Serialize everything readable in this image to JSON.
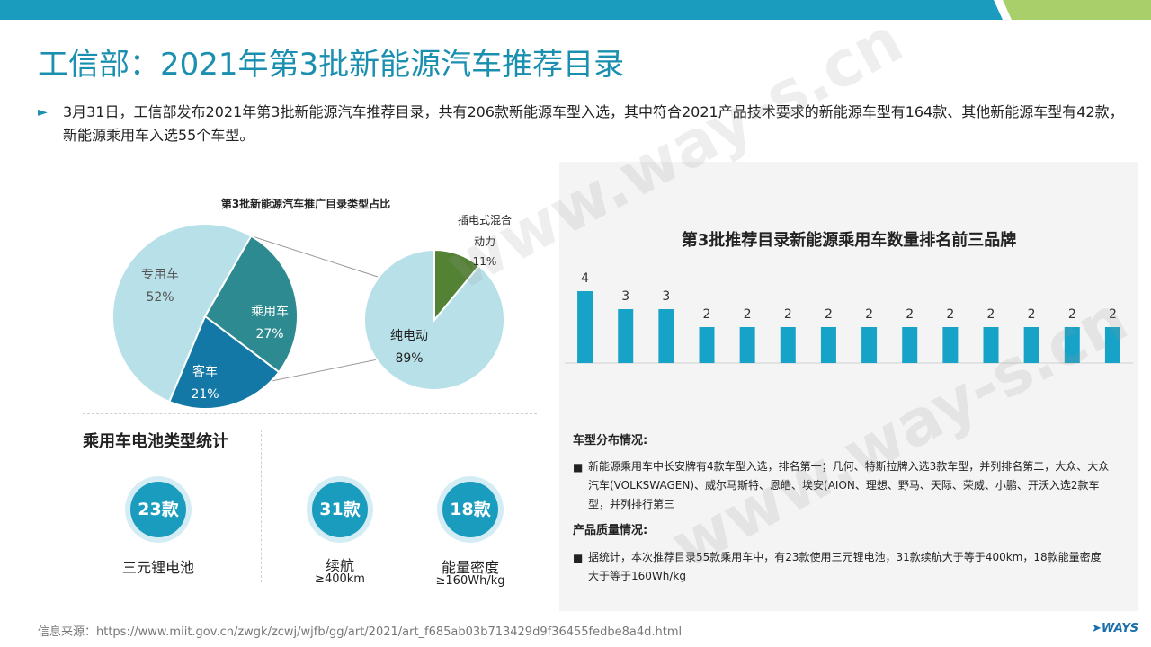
{
  "page": {
    "title": "工信部：2021年第3批新能源汽车推荐目录",
    "intro": "3月31日，工信部发布2021年第3批新能源汽车推荐目录，共有206款新能源车型入选，其中符合2021产品技术要求的新能源车型有164款、其他新能源车型有42款，新能源乘用车入选55个车型。",
    "footer": "信息来源：https://www.miit.gov.cn/zwgk/zcwj/wjfb/gg/art/2021/art_f685ab03b713429d9f36455fedbe8a4d.html",
    "logo": "WAYS",
    "watermark": "www.way-s.cn"
  },
  "colors": {
    "accent": "#1a8fb0",
    "bar": "#17a2c7",
    "pie_light": "#b8e0e8",
    "pie_teal": "#2e8a91",
    "pie_blue": "#1478a6",
    "pie_green": "#548235",
    "badge": "#1a9cbe"
  },
  "pie_section": {
    "title": "第3批新能源汽车推广目录类型占比"
  },
  "battery": {
    "title": "乘用车电池类型统计",
    "stats": [
      {
        "badge": "23款",
        "label": "三元锂电池",
        "sub": ""
      },
      {
        "badge": "31款",
        "label": "续航",
        "sub": "≥400km"
      },
      {
        "badge": "18款",
        "label": "能量密度",
        "sub": "≥160Wh/kg"
      }
    ]
  },
  "info": {
    "dist_heading": "车型分布情况:",
    "dist_text": "新能源乘用车中长安牌有4款车型入选，排名第一；几何、特斯拉牌入选3款车型，并列排名第二，大众、大众汽车(VOLKSWAGEN)、威尔马斯特、恩皓、埃安(AION、理想、野马、天际、荣威、小鹏、开沃入选2款车型，并列排行第三",
    "quality_heading": "产品质量情况:",
    "quality_text": "据统计，本次推荐目录55款乘用车中，有23款使用三元锂电池，31款续航大于等于400km，18款能量密度大于等于160Wh/kg"
  },
  "chart_data": [
    {
      "type": "pie",
      "title": "",
      "labels": [
        "专用车",
        "乘用车",
        "客车"
      ],
      "values": [
        52,
        27,
        21
      ],
      "value_labels": [
        "52%",
        "27%",
        "21%"
      ]
    },
    {
      "type": "pie",
      "title": "",
      "labels": [
        "纯电动",
        "插电式混合动力"
      ],
      "values": [
        89,
        11
      ],
      "value_labels": [
        "89%",
        "11%"
      ]
    },
    {
      "type": "bar",
      "title": "第3批推荐目录新能源乘用车数量排名前三品牌",
      "categories": [
        "",
        "",
        "",
        "",
        "",
        "",
        "",
        "",
        "",
        "",
        "",
        "",
        "",
        ""
      ],
      "values": [
        4,
        3,
        3,
        2,
        2,
        2,
        2,
        2,
        2,
        2,
        2,
        2,
        2,
        2
      ],
      "ylim": [
        0,
        4
      ],
      "grid": false,
      "legend": "none"
    }
  ]
}
